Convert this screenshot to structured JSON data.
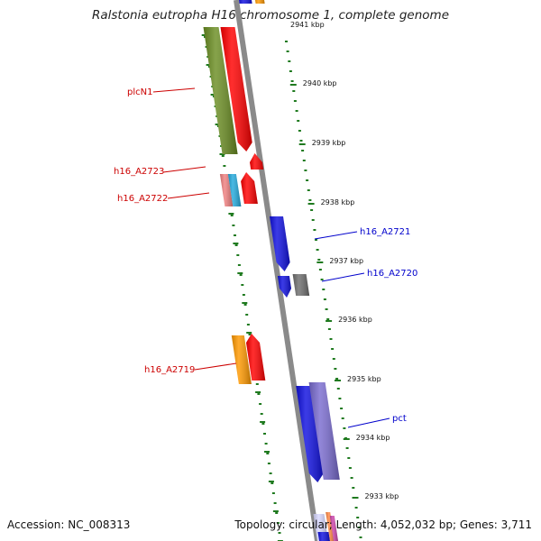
{
  "title": "Ralstonia eutropha H16 chromosome 1, complete genome",
  "footer": {
    "accession": "Accession: NC_008313",
    "summary": "Topology: circular; Length: 4,052,032 bp; Genes: 3,711"
  },
  "map": {
    "axis_color": "#8a8a8a",
    "dot_color": "#1f7a1f",
    "faded_tick": "2941 kbp",
    "ticks": [
      "2940 kbp",
      "2939 kbp",
      "2938 kbp",
      "2937 kbp",
      "2936 kbp",
      "2935 kbp",
      "2934 kbp",
      "2933 kbp"
    ],
    "labels": [
      {
        "text": "plcN1",
        "color": "#cc0000"
      },
      {
        "text": "h16_A2723",
        "color": "#cc0000"
      },
      {
        "text": "h16_A2722",
        "color": "#cc0000"
      },
      {
        "text": "h16_A2721",
        "color": "#0000cc"
      },
      {
        "text": "h16_A2720",
        "color": "#0000cc"
      },
      {
        "text": "h16_A2719",
        "color": "#cc0000"
      },
      {
        "text": "pct",
        "color": "#0000cc"
      }
    ],
    "feature_colors": {
      "red": "#ff0000",
      "olive": "#6b8e23",
      "blue": "#1010e0",
      "purple": "#7a6cd0",
      "orange": "#ff9900",
      "gray": "#6e6e6e",
      "pink": "#f08080",
      "cyan": "#22aadd"
    }
  }
}
